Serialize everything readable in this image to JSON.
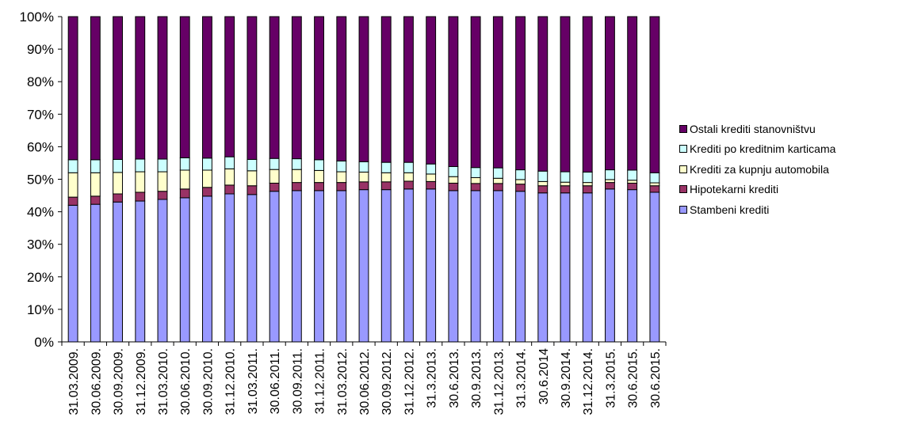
{
  "chart_data": {
    "type": "bar",
    "stacked": true,
    "percent": true,
    "categories": [
      "31.03.2009.",
      "30.06.2009.",
      "30.09.2009.",
      "31.12.2009.",
      "31.03.2010.",
      "30.06.2010.",
      "30.09.2010.",
      "31.12.2010.",
      "31.03.2011.",
      "30.06.2011.",
      "30.09.2011.",
      "31.12.2011.",
      "31.03.2012.",
      "30.06.2012.",
      "30.09.2012.",
      "31.12.2012.",
      "31.3.2013.",
      "30.6.2013.",
      "30.9.2013.",
      "31.12.2013.",
      "31.3.2014.",
      "30.6.2014",
      "30.9.2014.",
      "31.12.2014.",
      "31.3.2015.",
      "30.6.2015.",
      "30.6.2015."
    ],
    "series": [
      {
        "name": "Stambeni krediti",
        "color": "#9999ff",
        "values": [
          42,
          42.3,
          43,
          43.3,
          43.8,
          44.3,
          44.8,
          45.5,
          45.3,
          46.3,
          46.5,
          46.5,
          46.5,
          46.8,
          46.8,
          47,
          47,
          46.5,
          46.5,
          46.5,
          46.3,
          45.8,
          45.8,
          45.8,
          47,
          46.8,
          46
        ]
      },
      {
        "name": "Hipotekarni krediti",
        "color": "#993366",
        "values": [
          2.5,
          2.5,
          2.5,
          2.7,
          2.5,
          2.7,
          2.7,
          2.7,
          2.7,
          2.5,
          2.5,
          2.5,
          2.5,
          2.4,
          2.4,
          2.4,
          2.3,
          2.3,
          2.2,
          2.2,
          2.2,
          2.2,
          2.2,
          2.2,
          2.0,
          2.0,
          2.0
        ]
      },
      {
        "name": "Krediti za kupnju automobila",
        "color": "#ffffcc",
        "values": [
          7.5,
          7.2,
          6.6,
          6.3,
          6,
          5.8,
          5.3,
          5,
          4.6,
          4.2,
          4,
          3.7,
          3.3,
          3,
          2.8,
          2.6,
          2.3,
          2,
          1.8,
          1.6,
          1.4,
          1.3,
          1.1,
          1,
          0.9,
          0.9,
          0.9
        ]
      },
      {
        "name": "Krediti po kreditnim karticama",
        "color": "#ccffff",
        "values": [
          4,
          4,
          4,
          3.9,
          3.9,
          3.8,
          3.7,
          3.7,
          3.5,
          3.4,
          3.3,
          3.3,
          3.3,
          3.2,
          3.2,
          3.2,
          3.1,
          3.1,
          3.1,
          3.2,
          3.0,
          3.2,
          3.2,
          3.2,
          3.0,
          3.1,
          3.1
        ]
      },
      {
        "name": "Ostali krediti stanovništvu",
        "color": "#660066",
        "values": [
          44,
          44,
          43.9,
          43.8,
          43.8,
          43.4,
          43.5,
          43.1,
          43.9,
          43.6,
          43.7,
          44,
          44.4,
          44.6,
          44.8,
          44.8,
          45.3,
          46.1,
          46.4,
          46.5,
          47.1,
          47.5,
          47.7,
          47.8,
          47.1,
          47.2,
          48
        ]
      }
    ],
    "yticks": [
      "0%",
      "10%",
      "20%",
      "30%",
      "40%",
      "50%",
      "60%",
      "70%",
      "80%",
      "90%",
      "100%"
    ],
    "ylim": [
      0,
      100
    ],
    "legend_order": [
      "Ostali krediti stanovništvu",
      "Krediti po kreditnim karticama",
      "Krediti za kupnju automobila",
      "Hipotekarni krediti",
      "Stambeni krediti"
    ],
    "legend_position": "right",
    "grid": false
  }
}
